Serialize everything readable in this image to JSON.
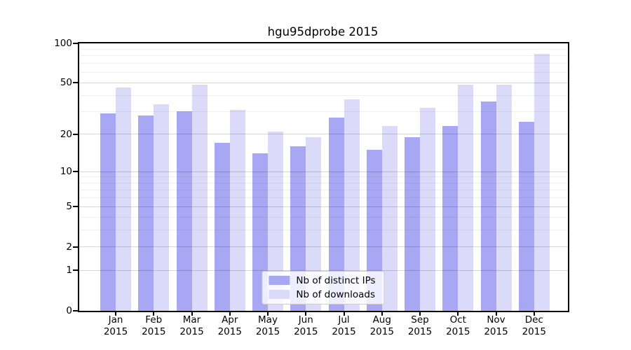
{
  "title": "hgu95dprobe 2015",
  "colors": {
    "ips_bar": "#a7a7f3",
    "downloads_bar": "#dbdbf9",
    "grid_major": "rgba(0,0,0,0.16)",
    "grid_minor": "rgba(0,0,0,0.06)",
    "axis": "#000000",
    "legend_border": "#cccccc"
  },
  "legend": {
    "items": [
      {
        "key": "ips",
        "label": "Nb of distinct IPs"
      },
      {
        "key": "downloads",
        "label": "Nb of downloads"
      }
    ]
  },
  "y_axis": {
    "tick_labels": [
      "100",
      "50",
      "20",
      "10",
      "5",
      "2",
      "1",
      "0"
    ],
    "tick_values": [
      100,
      50,
      20,
      10,
      5,
      2,
      1,
      0
    ],
    "minor_tick_values": [
      3,
      4,
      6,
      7,
      8,
      9,
      30,
      40,
      60,
      70,
      80,
      90
    ]
  },
  "x_axis": {
    "tick_labels": [
      "Jan 2015",
      "Feb 2015",
      "Mar 2015",
      "Apr 2015",
      "May 2015",
      "Jun 2015",
      "Jul 2015",
      "Aug 2015",
      "Sep 2015",
      "Oct 2015",
      "Nov 2015",
      "Dec 2015"
    ]
  },
  "chart_data": {
    "type": "bar",
    "title": "hgu95dprobe 2015",
    "categories": [
      "Jan 2015",
      "Feb 2015",
      "Mar 2015",
      "Apr 2015",
      "May 2015",
      "Jun 2015",
      "Jul 2015",
      "Aug 2015",
      "Sep 2015",
      "Oct 2015",
      "Nov 2015",
      "Dec 2015"
    ],
    "series": [
      {
        "key": "ips",
        "name": "Nb of distinct IPs",
        "color": "#a7a7f3",
        "values": [
          29,
          28,
          30,
          17,
          14,
          16,
          27,
          15,
          19,
          23,
          36,
          25
        ]
      },
      {
        "key": "downloads",
        "name": "Nb of downloads",
        "color": "#dbdbf9",
        "values": [
          46,
          34,
          48,
          31,
          21,
          19,
          37,
          23,
          32,
          48,
          48,
          83
        ]
      }
    ],
    "yscale": "log1p",
    "ylim": [
      0,
      100
    ],
    "yticks": [
      0,
      1,
      2,
      5,
      10,
      20,
      50,
      100
    ],
    "yticks_minor": [
      3,
      4,
      6,
      7,
      8,
      9,
      30,
      40,
      60,
      70,
      80,
      90
    ],
    "xlabel": "",
    "ylabel": "",
    "grid": true,
    "legend_position": "lower center"
  }
}
